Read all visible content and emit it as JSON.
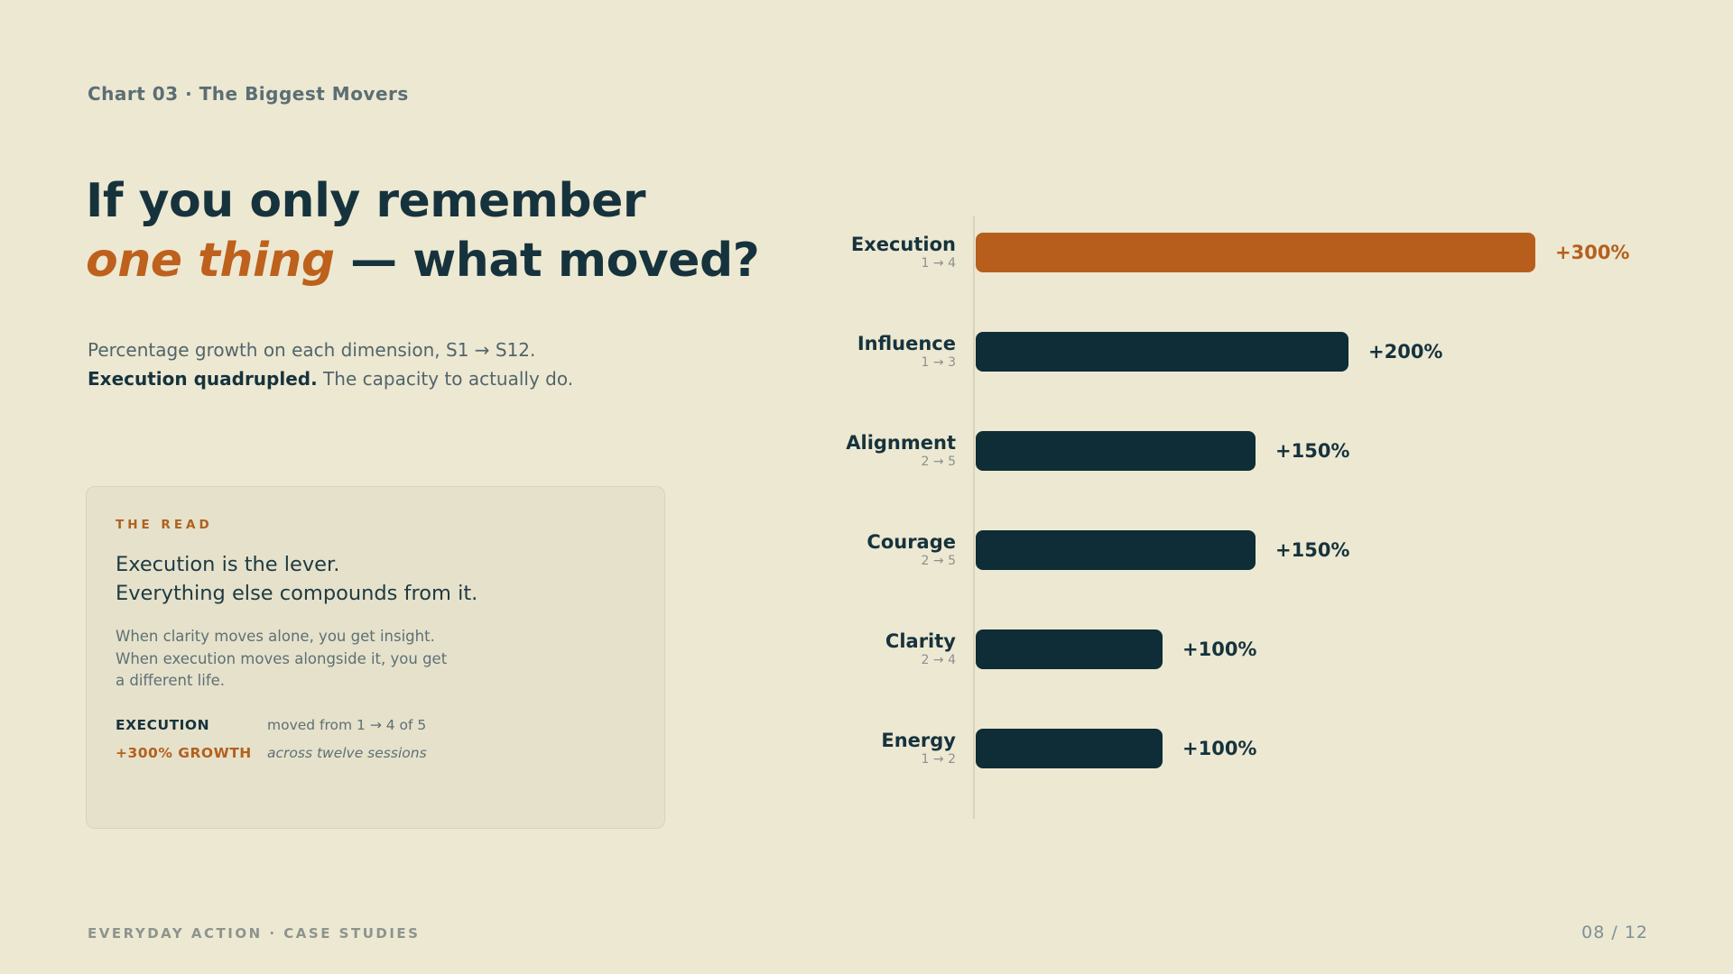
{
  "kicker": "Chart 03 · The Biggest Movers",
  "title": {
    "line1": "If you only remember",
    "emphasis": "one thing",
    "rest": " — what moved?"
  },
  "subtitle": {
    "line1": "Percentage growth on each dimension, S1 → S12.",
    "line2_bold": "Execution quadrupled.",
    "line2_rest": " The capacity to actually do."
  },
  "read_panel": {
    "kicker": "THE READ",
    "lede_line1": "Execution is the lever.",
    "lede_line2": "Everything else compounds from it.",
    "body_lines": [
      "When clarity moves alone, you get insight.",
      "When execution moves alongside it, you get",
      "a different life."
    ],
    "stats": [
      {
        "label": "EXECUTION",
        "value": "moved from 1 → 4 of 5",
        "label_style": "dark",
        "value_italic": false
      },
      {
        "label": "+300% GROWTH",
        "value": "across twelve sessions",
        "label_style": "accent",
        "value_italic": true
      }
    ]
  },
  "chart_data": {
    "type": "bar",
    "orientation": "horizontal",
    "title": "",
    "xlabel": "",
    "ylabel": "",
    "grid": false,
    "legend": false,
    "xlim": [
      0,
      300
    ],
    "categories": [
      "Execution",
      "Influence",
      "Alignment",
      "Courage",
      "Clarity",
      "Energy"
    ],
    "values": [
      300,
      200,
      150,
      150,
      100,
      100
    ],
    "value_labels": [
      "+300%",
      "+200%",
      "+150%",
      "+150%",
      "+100%",
      "+100%"
    ],
    "range_labels": [
      "1 → 4",
      "1 → 3",
      "2 → 5",
      "2 → 5",
      "2 → 4",
      "1 → 2"
    ],
    "highlighted": [
      true,
      false,
      false,
      false,
      false,
      false
    ],
    "colors": {
      "highlight_bar": "#B85E1C",
      "default_bar": "#0E2D36",
      "highlight_value": "#B4601D",
      "default_value": "#16333D"
    }
  },
  "footer": {
    "left": "EVERYDAY ACTION · CASE STUDIES",
    "right": "08 / 12"
  },
  "colors": {
    "background": "#EDE8D2",
    "panel_background": "#E6E1CB",
    "dark_ink": "#16333D",
    "accent_orange": "#B85E1C",
    "muted_teal": "#5B6E74"
  }
}
